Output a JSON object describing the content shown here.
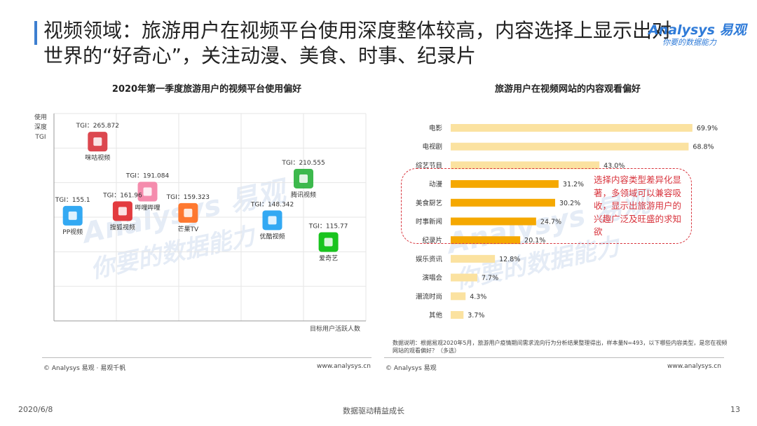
{
  "header": {
    "title": "视频领域：旅游用户在视频平台使用深度整体较高，内容选择上显示出对世界的“好奇心”，关注动漫、美食、时事、纪录片",
    "logo_main": "Analysys 易观",
    "logo_sub": "你要的数据能力"
  },
  "watermark": {
    "text1": "Analysys 易观",
    "text2": "你要的数据能力"
  },
  "colors": {
    "accent": "#3d7fd0",
    "bar_highlight": "#f5a800",
    "bar_normal": "#fbe2a0",
    "callout": "#d8333c"
  },
  "chart_data": [
    {
      "type": "scatter",
      "title": "2020年第一季度旅游用户的视频平台使用偏好",
      "xlabel": "目标用户活跃人数",
      "ylabel": "使用深度TGI",
      "points": [
        {
          "name": "咪咕视频",
          "tgi_label": "TGI：265.872",
          "tgi": 265.872,
          "icon": "migu-logo-icon",
          "color": "#d8333c",
          "x": 1.4,
          "y": 265.872
        },
        {
          "name": "哔哩哔哩",
          "tgi_label": "TGI：191.084",
          "tgi": 191.084,
          "icon": "bilibili-logo-icon",
          "color": "#f47fa4",
          "x": 3.0,
          "y": 191.084
        },
        {
          "name": "搜狐视频",
          "tgi_label": "TGI：161.96",
          "tgi": 161.96,
          "icon": "sohu-logo-icon",
          "color": "#e0262a",
          "x": 2.2,
          "y": 161.96
        },
        {
          "name": "PP视频",
          "tgi_label": "TGI：155.1",
          "tgi": 155.1,
          "icon": "pp-logo-icon",
          "color": "#1da0f2",
          "x": 0.6,
          "y": 155.1
        },
        {
          "name": "芒果TV",
          "tgi_label": "TGI：159.323",
          "tgi": 159.323,
          "icon": "mango-logo-icon",
          "color": "#ff6a1a",
          "x": 4.3,
          "y": 159.323
        },
        {
          "name": "腾讯视频",
          "tgi_label": "TGI：210.555",
          "tgi": 210.555,
          "icon": "tencent-video-logo-icon",
          "color": "#28b13a",
          "x": 8.0,
          "y": 210.555
        },
        {
          "name": "优酷视频",
          "tgi_label": "TGI：148.342",
          "tgi": 148.342,
          "icon": "youku-logo-icon",
          "color": "#1da0f2",
          "x": 7.0,
          "y": 148.342
        },
        {
          "name": "爱奇艺",
          "tgi_label": "TGI：115.77",
          "tgi": 115.77,
          "icon": "iqiyi-logo-icon",
          "color": "#00be06",
          "x": 8.8,
          "y": 115.77
        }
      ],
      "xlim": [
        0,
        10
      ],
      "ylim": [
        0,
        310
      ],
      "grid": true
    },
    {
      "type": "bar",
      "orientation": "horizontal",
      "title": "旅游用户在视频网站的内容观看偏好",
      "categories": [
        "电影",
        "电视剧",
        "综艺节目",
        "动漫",
        "美食厨艺",
        "时事新闻",
        "纪录片",
        "娱乐资讯",
        "演唱会",
        "潮流时尚",
        "其他"
      ],
      "values": [
        69.9,
        68.8,
        43.0,
        31.2,
        30.2,
        24.7,
        20.1,
        12.8,
        7.7,
        4.3,
        3.7
      ],
      "value_labels": [
        "69.9%",
        "68.8%",
        "43.0%",
        "31.2%",
        "30.2%",
        "24.7%",
        "20.1%",
        "12.8%",
        "7.7%",
        "4.3%",
        "3.7%"
      ],
      "highlight": [
        false,
        false,
        false,
        true,
        true,
        true,
        true,
        false,
        false,
        false,
        false
      ],
      "xlim": [
        0,
        75
      ]
    }
  ],
  "callout": {
    "text": "选择内容类型差异化显著，多领域可以兼容吸收，显示出旅游用户的兴趣广泛及旺盛的求知欲"
  },
  "note": {
    "text": "数据说明：根据易观2020年5月，旅游用户疫情期间需求流向行为分析结果整理得出，样本量N=493，以下哪些内容类型，是您在视频网站的观看偏好？（多选）"
  },
  "footer": {
    "left_copyright": "© Analysys 易观 · 易观千帆",
    "left_url": "www.analysys.cn",
    "right_copyright": "© Analysys 易观",
    "right_url": "www.analysys.cn",
    "date": "2020/6/8",
    "slogan": "数据驱动精益成长",
    "page": "13"
  }
}
